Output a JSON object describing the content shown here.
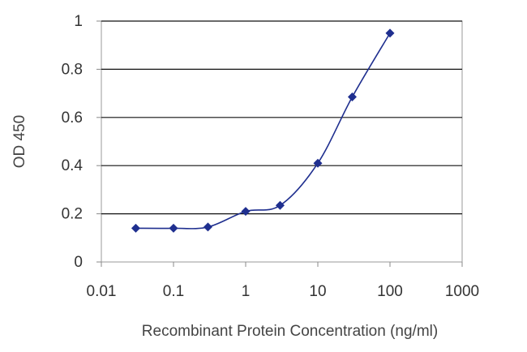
{
  "chart_data": {
    "type": "line",
    "title": "",
    "xlabel": "Recombinant Protein Concentration (ng/ml)",
    "ylabel": "OD 450",
    "x_scale": "log",
    "xlim": [
      0.01,
      1000
    ],
    "ylim": [
      0,
      1
    ],
    "x_ticks": [
      "0.01",
      "0.1",
      "1",
      "10",
      "100",
      "1000"
    ],
    "y_ticks": [
      "0",
      "0.2",
      "0.4",
      "0.6",
      "0.8",
      "1"
    ],
    "grid": "horizontal",
    "legend": "none",
    "series": [
      {
        "color": "#1f2f8f",
        "marker": "diamond",
        "x": [
          0.03,
          0.1,
          0.3,
          1,
          3,
          10,
          30,
          100
        ],
        "y": [
          0.14,
          0.14,
          0.145,
          0.21,
          0.235,
          0.41,
          0.685,
          0.95
        ]
      }
    ]
  }
}
